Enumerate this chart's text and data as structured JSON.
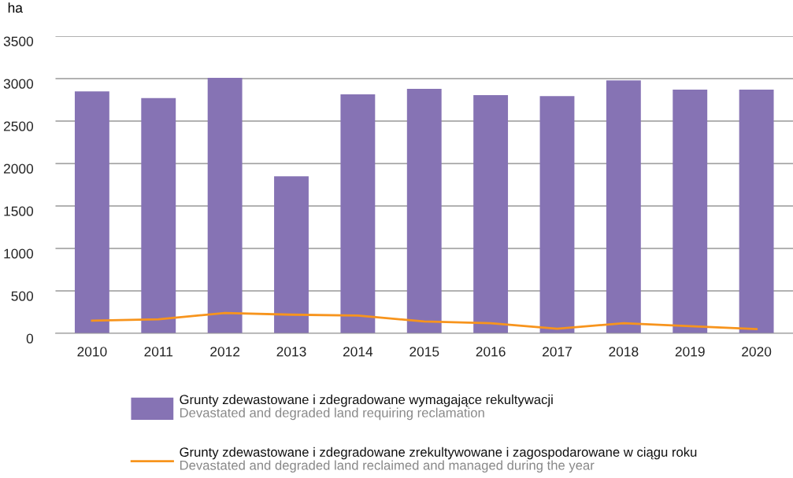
{
  "chart_data": {
    "type": "bar",
    "ylabel": "ha",
    "categories": [
      "2010",
      "2011",
      "2012",
      "2013",
      "2014",
      "2015",
      "2016",
      "2017",
      "2018",
      "2019",
      "2020"
    ],
    "series": [
      {
        "name": "Grunty zdewastowane i zdegradowane wymagające rekultywacji\nDevastated and degraded land requiring reclamation",
        "color": "#8673b4",
        "values": [
          2850,
          2770,
          3010,
          1850,
          2815,
          2880,
          2805,
          2795,
          2980,
          2870,
          2870
        ]
      },
      {
        "type": "line",
        "name": "Grunty zdewastowane i zdegradowane zrekultywowane i zagospodarowane w ciągu roku\nDevastated and degraded land reclaimed and managed during the year",
        "color": "#f7941d",
        "values": [
          150,
          165,
          240,
          220,
          210,
          140,
          120,
          55,
          120,
          85,
          50
        ]
      }
    ],
    "ylim": [
      0,
      3500
    ],
    "yticks": [
      0,
      500,
      1000,
      1500,
      2000,
      2500,
      3000,
      3500
    ],
    "grid": "y",
    "legend": "bottom",
    "marker": "none",
    "line_style": "solid"
  }
}
